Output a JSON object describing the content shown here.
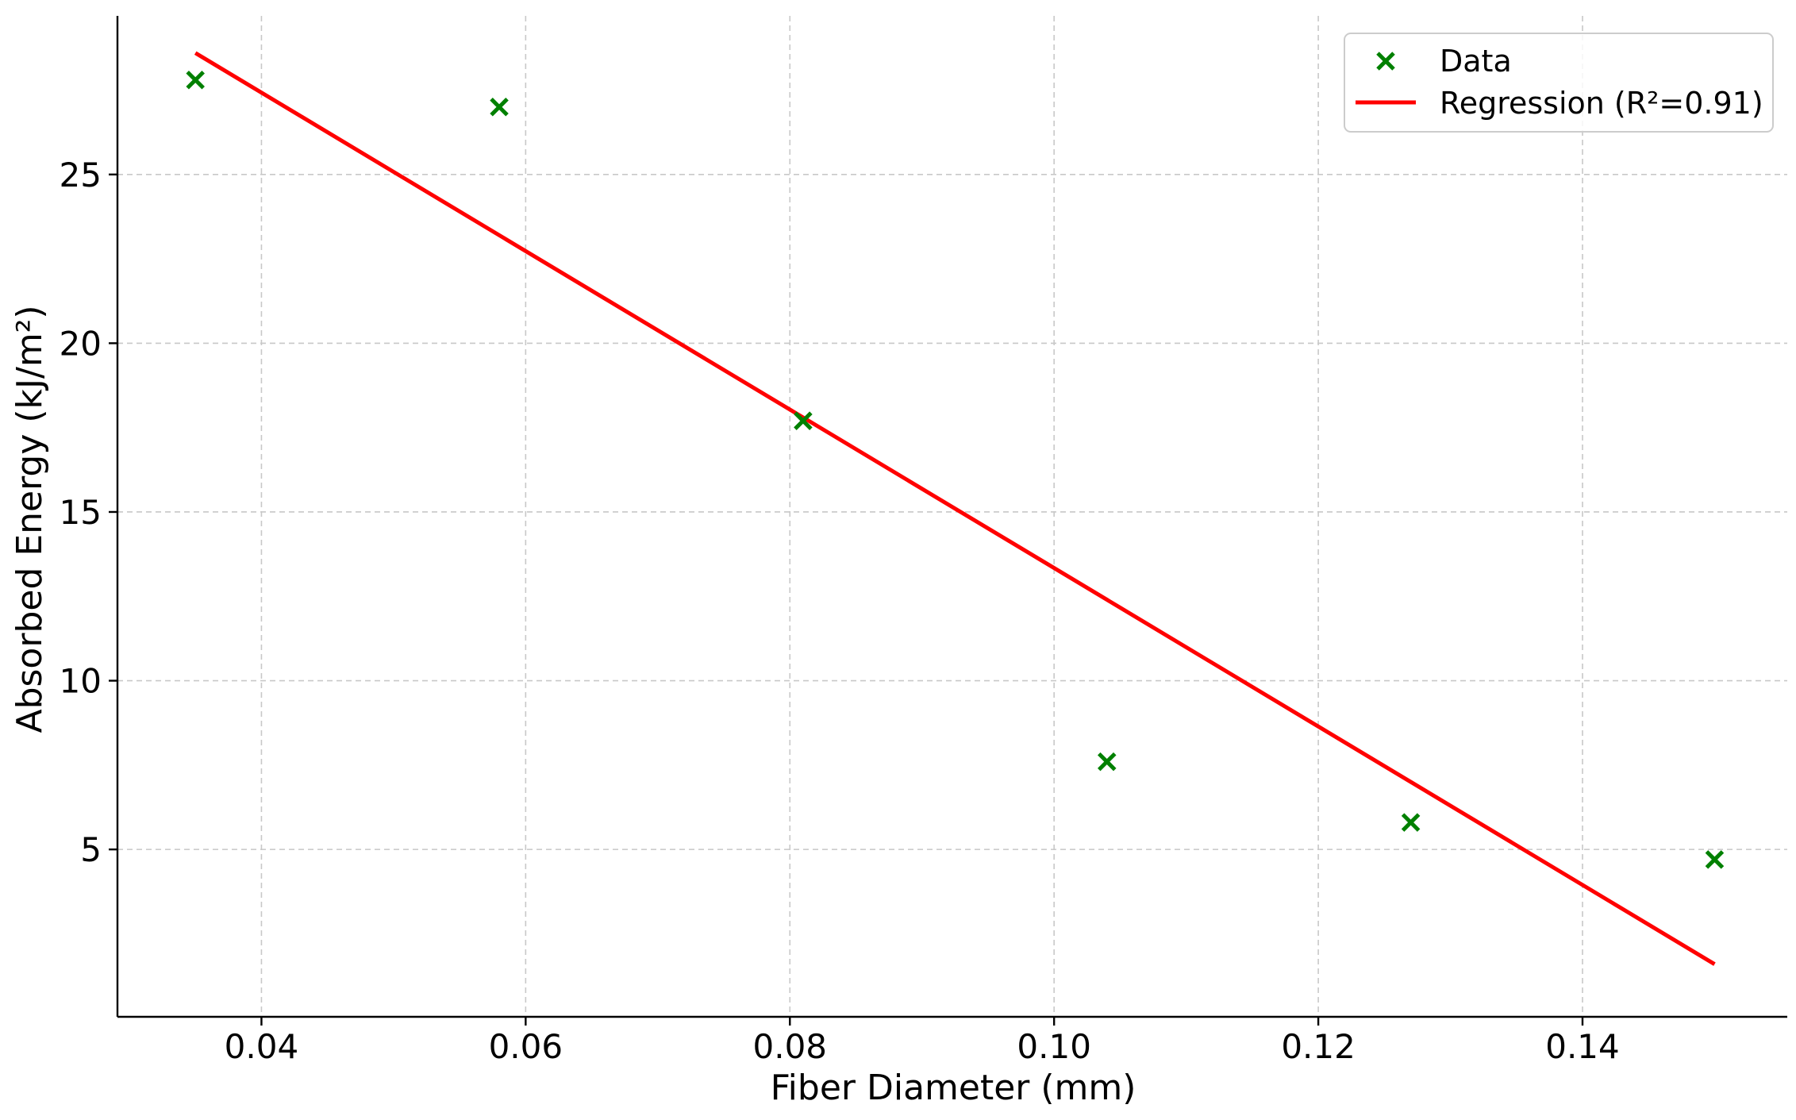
{
  "chart_data": {
    "type": "scatter",
    "title": "",
    "xlabel": "Fiber Diameter (mm)",
    "ylabel": "Absorbed Energy (kJ/m²)",
    "xlim": [
      0.0291,
      0.1555
    ],
    "ylim": [
      0.04,
      29.7
    ],
    "x_ticks": [
      0.04,
      0.06,
      0.08,
      0.1,
      0.12,
      0.14
    ],
    "x_tick_labels": [
      "0.04",
      "0.06",
      "0.08",
      "0.10",
      "0.12",
      "0.14"
    ],
    "y_ticks": [
      5,
      10,
      15,
      20,
      25
    ],
    "y_tick_labels": [
      "5",
      "10",
      "15",
      "20",
      "25"
    ],
    "grid": true,
    "legend_position": "top-right",
    "series": [
      {
        "name": "Data",
        "kind": "scatter",
        "marker": "x",
        "color": "#008000",
        "points": [
          {
            "x": 0.035,
            "y": 27.8
          },
          {
            "x": 0.058,
            "y": 27.0
          },
          {
            "x": 0.081,
            "y": 17.7
          },
          {
            "x": 0.104,
            "y": 7.6
          },
          {
            "x": 0.127,
            "y": 5.8
          },
          {
            "x": 0.15,
            "y": 4.7
          }
        ]
      },
      {
        "name": "Regression (R²=0.91)",
        "kind": "line",
        "color": "#ff0000",
        "points": [
          {
            "x": 0.035,
            "y": 28.6
          },
          {
            "x": 0.15,
            "y": 1.6
          }
        ]
      }
    ]
  }
}
